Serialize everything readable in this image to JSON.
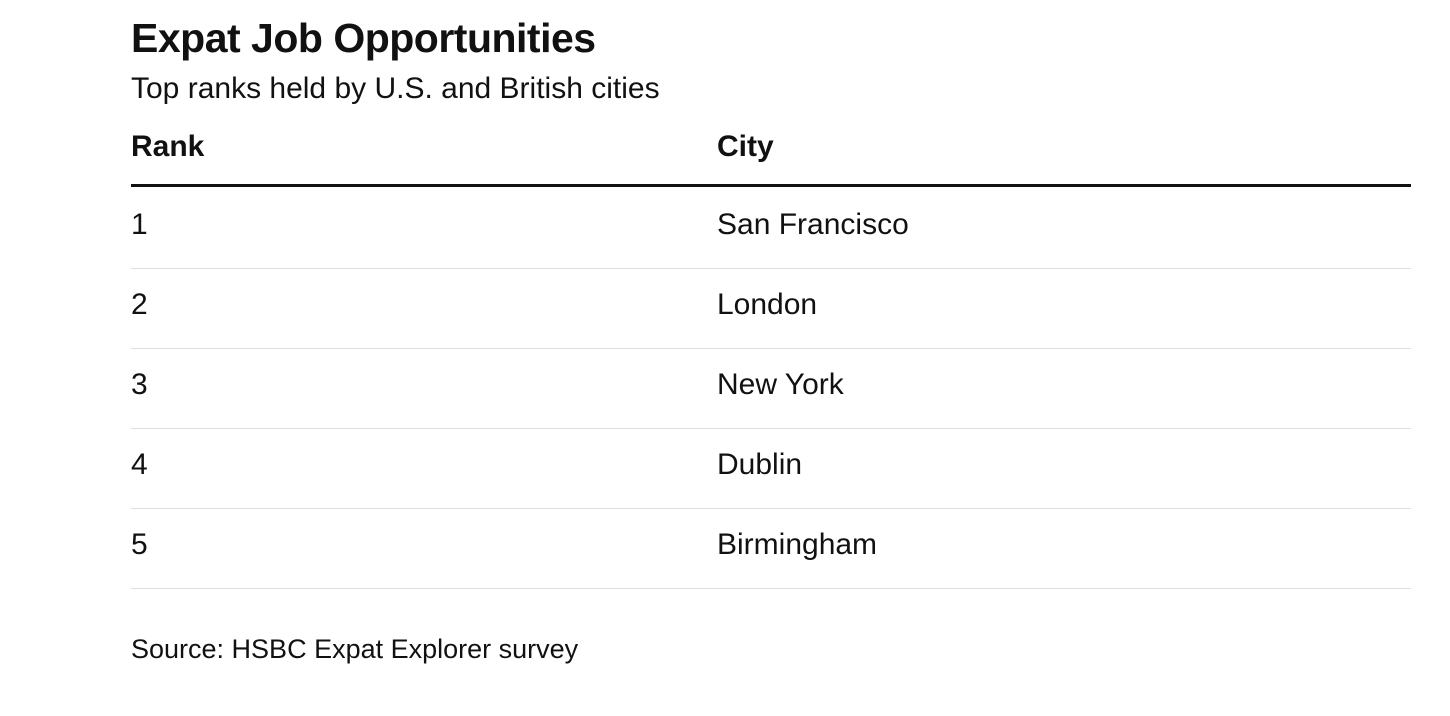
{
  "header": {
    "title": "Expat Job Opportunities",
    "subtitle": "Top ranks held by U.S. and British cities"
  },
  "table": {
    "columns": [
      "Rank",
      "City"
    ],
    "rows": [
      [
        1,
        "San Francisco"
      ],
      [
        2,
        "London"
      ],
      [
        3,
        "New York"
      ],
      [
        4,
        "Dublin"
      ],
      [
        5,
        "Birmingham"
      ]
    ]
  },
  "footer": {
    "source": "Source: HSBC Expat Explorer survey"
  }
}
